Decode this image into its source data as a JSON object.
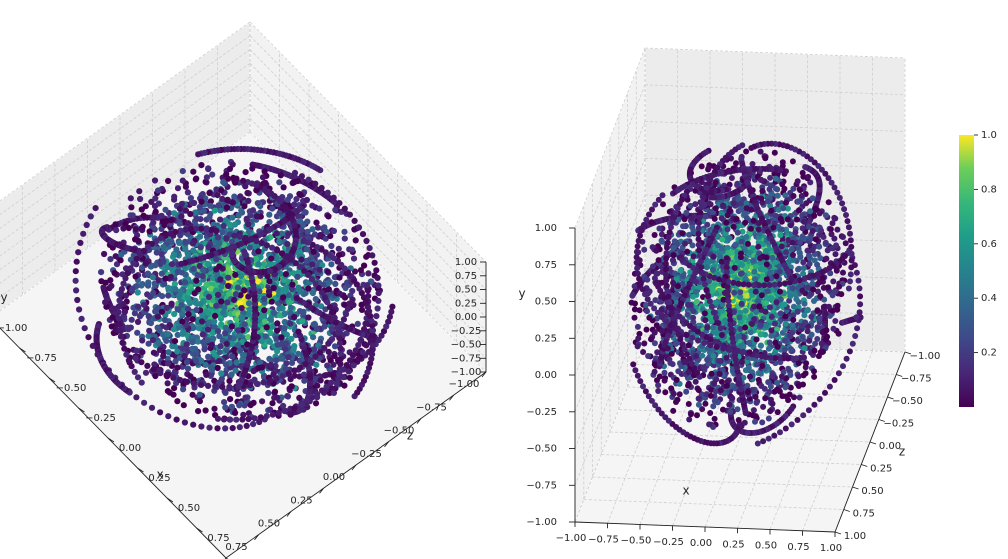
{
  "chart_data": [
    {
      "type": "scatter",
      "projection": "3d",
      "view": "left",
      "title": "",
      "xlabel": "x",
      "ylabel": "y",
      "zlabel": "z",
      "xlim": [
        -1,
        1
      ],
      "ylim": [
        -1,
        1
      ],
      "zlim": [
        -1,
        1
      ],
      "xticks": [
        "−1.00",
        "−0.75",
        "−0.50",
        "−0.25",
        "0.00",
        "0.25",
        "0.50",
        "0.75",
        "1.00"
      ],
      "yticks": [
        "−1.00",
        "−0.75",
        "−0.50",
        "−0.25",
        "0.00",
        "0.25",
        "0.50",
        "0.75",
        "1.00"
      ],
      "zticks": [
        "−1.00",
        "−0.75",
        "−0.50",
        "−0.25",
        "0.00",
        "0.25",
        "0.50",
        "0.75",
        "1.00"
      ],
      "grid": true,
      "colormap": "viridis",
      "color_value_range": [
        0,
        1
      ],
      "point_cloud": "dense roughly spherical cloud of points within radius ~0.85 of the origin, with trailing arc curves on its outer shell; points near the center have high color values (yellow) and outer points low values (purple)"
    },
    {
      "type": "scatter",
      "projection": "3d",
      "view": "right",
      "title": "",
      "xlabel": "x",
      "ylabel": "y",
      "zlabel": "z",
      "xlim": [
        -1,
        1
      ],
      "ylim": [
        -1,
        1
      ],
      "zlim": [
        -1,
        1
      ],
      "xticks": [
        "−1.00",
        "−0.75",
        "−0.50",
        "−0.25",
        "0.00",
        "0.25",
        "0.50",
        "0.75",
        "1.00"
      ],
      "yticks": [
        "−1.00",
        "−0.75",
        "−0.50",
        "−0.25",
        "0.00",
        "0.25",
        "0.50",
        "0.75",
        "1.00"
      ],
      "zticks": [
        "−1.00",
        "−0.75",
        "−0.50",
        "−0.25",
        "0.00",
        "0.25",
        "0.50",
        "0.75",
        "1.00"
      ],
      "grid": true,
      "colormap": "viridis",
      "color_value_range": [
        0,
        1
      ],
      "point_cloud": "same point cloud as the left view, seen from a different elevation and azimuth"
    }
  ],
  "colorbar": {
    "colormap": "viridis",
    "range": [
      0,
      1
    ],
    "ticks": [
      "0.2",
      "0.4",
      "0.6",
      "0.8",
      "1.0"
    ],
    "tick_values": [
      0.2,
      0.4,
      0.6,
      0.8,
      1.0
    ],
    "placement": "right"
  },
  "colors": {
    "pane": "#f2f2f2",
    "grid": "#cfcfcf",
    "viridis_low": "#440154",
    "viridis_mid": "#21918c",
    "viridis_high": "#fde725"
  }
}
